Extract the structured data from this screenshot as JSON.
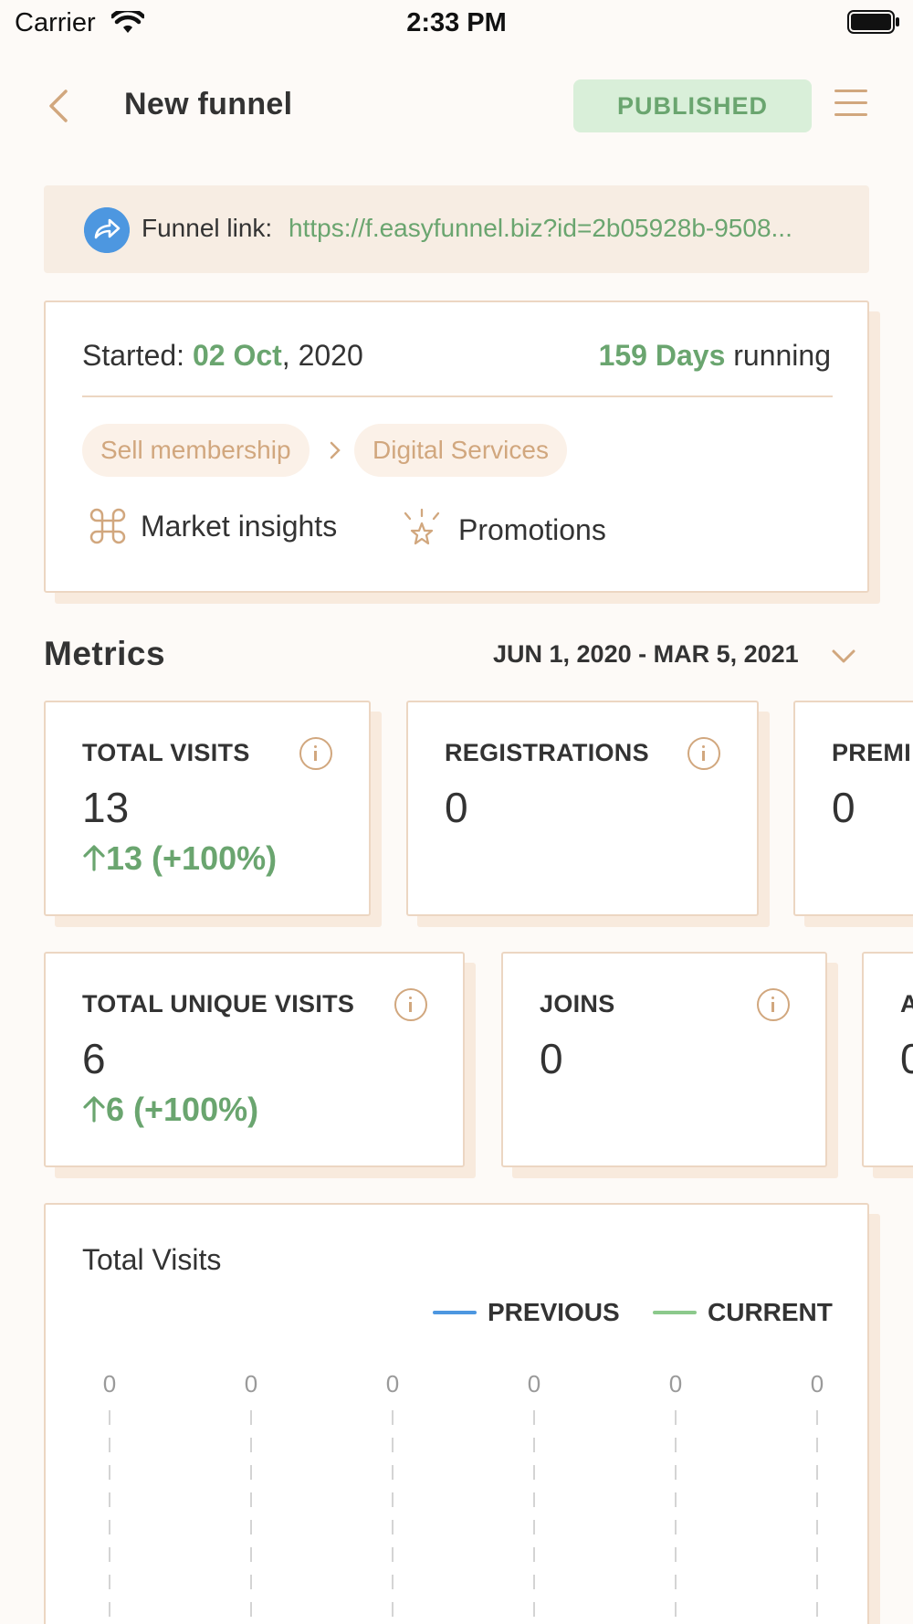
{
  "status_bar": {
    "carrier": "Carrier",
    "time": "2:33 PM"
  },
  "header": {
    "title": "New funnel",
    "status": "PUBLISHED"
  },
  "funnel_link": {
    "label": "Funnel link:",
    "url": "https://f.easyfunnel.biz?id=2b05928b-9508..."
  },
  "info": {
    "started_label": "Started:",
    "started_date": "02 Oct",
    "started_year": ", 2020",
    "days": "159 Days",
    "running": "running",
    "tags": [
      "Sell membership",
      "Digital Services"
    ],
    "features": [
      {
        "label": "Market insights",
        "icon": "command-icon"
      },
      {
        "label": "Promotions",
        "icon": "star-burst-icon"
      }
    ]
  },
  "metrics": {
    "title": "Metrics",
    "date_range": "JUN 1, 2020 - MAR 5, 2021",
    "cards": [
      {
        "label": "TOTAL VISITS",
        "value": "13",
        "change": "13 (+100%)"
      },
      {
        "label": "REGISTRATIONS",
        "value": "0"
      },
      {
        "label": "PREMI",
        "value": "0"
      },
      {
        "label": "TOTAL UNIQUE VISITS",
        "value": "6",
        "change": "6 (+100%)"
      },
      {
        "label": "JOINS",
        "value": "0"
      },
      {
        "label": "A",
        "value": "0"
      }
    ]
  },
  "chart_data": {
    "type": "line",
    "title": "Total Visits",
    "series": [
      {
        "name": "PREVIOUS",
        "color": "#4d97e0"
      },
      {
        "name": "CURRENT",
        "color": "#8cc98c"
      }
    ],
    "top_labels": [
      "0",
      "0",
      "0",
      "0",
      "0",
      "0"
    ]
  }
}
